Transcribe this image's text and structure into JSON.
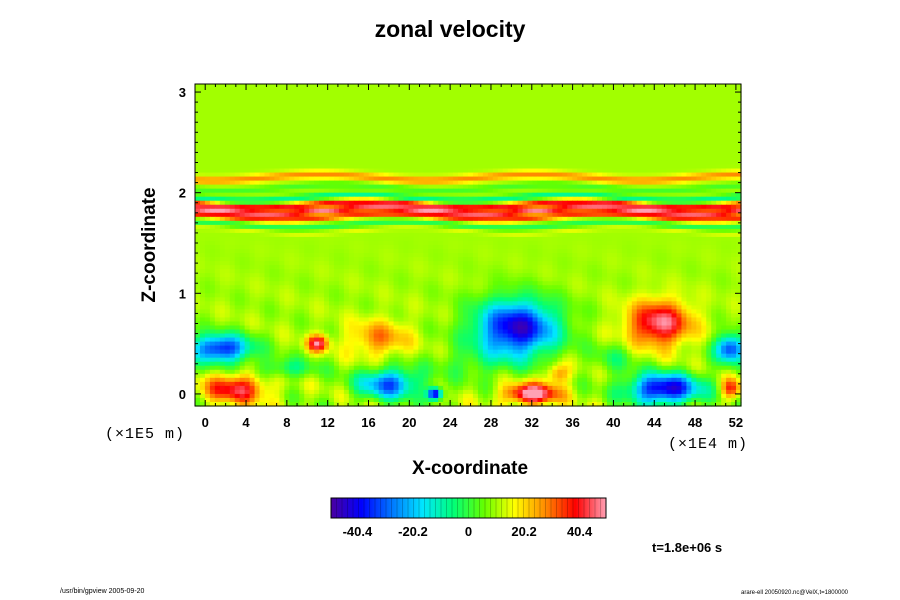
{
  "title": "zonal velocity",
  "footer": {
    "left": "/usr/bin/gpview 2005-09-20",
    "right": "arare-ell 20050920.nc@VelX,t=1800000"
  },
  "time_label": "t=1.8e+06 s",
  "chart_data": {
    "type": "heatmap",
    "title": "zonal velocity",
    "xlabel": "X-coordinate",
    "ylabel": "Z-coordinate",
    "x_unit_label": "(×1E4 m)",
    "y_unit_label": "(×1E5 m)",
    "xlim": [
      -1,
      52.5
    ],
    "ylim": [
      -0.12,
      3.08
    ],
    "x_ticks": [
      0,
      4,
      8,
      12,
      16,
      20,
      24,
      28,
      32,
      36,
      40,
      44,
      48,
      52
    ],
    "y_ticks": [
      0,
      1,
      2,
      3
    ],
    "colorbar": {
      "range": [
        -50,
        50
      ],
      "ticks": [
        -40.4,
        -20.2,
        0,
        20.2,
        40.4
      ],
      "tick_labels": [
        "-40.4",
        "-20.2",
        "0",
        "20.2",
        "40.4"
      ],
      "colors": [
        "#4b00a0",
        "#0000ff",
        "#0078ff",
        "#00e6ff",
        "#00ff78",
        "#64ff00",
        "#ffff00",
        "#ff8c00",
        "#ff0000",
        "#ffa0b4"
      ]
    },
    "background_value": 10,
    "bands": [
      {
        "z": 2.15,
        "width": 0.04,
        "value": 18
      },
      {
        "z": 2.05,
        "width": 0.03,
        "value": -8
      },
      {
        "z": 1.95,
        "width": 0.03,
        "value": -18
      },
      {
        "z": 1.88,
        "width": 0.03,
        "value": 30
      },
      {
        "z": 1.82,
        "width": 0.03,
        "value": 38
      },
      {
        "z": 1.76,
        "width": 0.03,
        "value": 25
      },
      {
        "z": 1.68,
        "width": 0.03,
        "value": -12
      },
      {
        "z": 1.62,
        "width": 0.02,
        "value": 5
      }
    ],
    "features": [
      {
        "x": 1.5,
        "z": 0.45,
        "rx": 3,
        "rz": 0.14,
        "value": -38
      },
      {
        "x": 3,
        "z": 0.05,
        "rx": 3,
        "rz": 0.14,
        "value": 42
      },
      {
        "x": 11,
        "z": 0.5,
        "rx": 1,
        "rz": 0.08,
        "value": 45
      },
      {
        "x": 17,
        "z": 0.55,
        "rx": 3,
        "rz": 0.18,
        "value": 28
      },
      {
        "x": 18,
        "z": 0.1,
        "rx": 3,
        "rz": 0.15,
        "value": -30
      },
      {
        "x": 22.5,
        "z": 0.0,
        "rx": 0.7,
        "rz": 0.06,
        "value": -48
      },
      {
        "x": 30.5,
        "z": 0.65,
        "rx": 4,
        "rz": 0.28,
        "value": -45
      },
      {
        "x": 32,
        "z": 0.0,
        "rx": 2.5,
        "rz": 0.1,
        "value": 55
      },
      {
        "x": 34.5,
        "z": 0.2,
        "rx": 1.2,
        "rz": 0.1,
        "value": 30
      },
      {
        "x": 44.5,
        "z": 0.7,
        "rx": 3,
        "rz": 0.22,
        "value": 48
      },
      {
        "x": 45,
        "z": 0.05,
        "rx": 3.5,
        "rz": 0.15,
        "value": -45
      },
      {
        "x": 51.5,
        "z": 0.45,
        "rx": 1.5,
        "rz": 0.14,
        "value": -35
      },
      {
        "x": 51.5,
        "z": 0.05,
        "rx": 1,
        "rz": 0.1,
        "value": 35
      },
      {
        "x": 8,
        "z": 0.25,
        "rx": 3,
        "rz": 0.1,
        "value": -5
      },
      {
        "x": 26,
        "z": 0.3,
        "rx": 4,
        "rz": 0.15,
        "value": 2
      },
      {
        "x": 40,
        "z": 0.35,
        "rx": 2,
        "rz": 0.15,
        "value": 0
      }
    ]
  }
}
